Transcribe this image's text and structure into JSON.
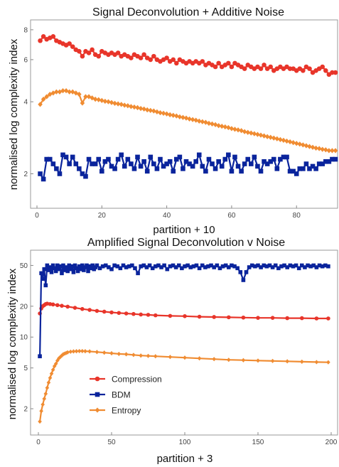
{
  "chart_data": [
    {
      "type": "line",
      "title": "Signal Deconvolution + Additive Noise",
      "xlabel": "partition + 10",
      "ylabel": "normalised log complexity index",
      "yscale": "log",
      "xlim": [
        0,
        92
      ],
      "ylim": [
        1.75,
        8.5
      ],
      "xticks": [
        "0",
        "20",
        "40",
        "60",
        "80"
      ],
      "yticks": [
        "2",
        "4",
        "6",
        "8"
      ],
      "grid": false,
      "series": [
        {
          "name": "Compression",
          "color": "#e8352a",
          "marker": "circle",
          "values": [
            7.2,
            7.5,
            7.3,
            7.4,
            7.5,
            7.2,
            7.1,
            7.0,
            6.9,
            7.0,
            6.8,
            6.6,
            6.5,
            6.2,
            6.5,
            6.4,
            6.6,
            6.3,
            6.2,
            6.5,
            6.4,
            6.3,
            6.4,
            6.3,
            6.4,
            6.2,
            6.3,
            6.2,
            6.1,
            6.3,
            6.2,
            6.1,
            6.3,
            6.1,
            6.0,
            6.2,
            6.0,
            5.9,
            6.0,
            6.1,
            5.9,
            6.0,
            5.8,
            6.0,
            5.9,
            5.8,
            5.9,
            5.8,
            5.9,
            5.8,
            5.9,
            5.7,
            5.8,
            5.7,
            5.6,
            5.8,
            5.6,
            5.7,
            5.8,
            5.6,
            5.8,
            5.7,
            5.6,
            5.5,
            5.7,
            5.6,
            5.5,
            5.6,
            5.5,
            5.7,
            5.5,
            5.6,
            5.4,
            5.5,
            5.6,
            5.5,
            5.6,
            5.5,
            5.5,
            5.4,
            5.5,
            5.4,
            5.6,
            5.5,
            5.3,
            5.4,
            5.5,
            5.6,
            5.4,
            5.2,
            5.3,
            5.3
          ]
        },
        {
          "name": "BDM",
          "color": "#0a249c",
          "marker": "square",
          "values": [
            2.0,
            1.9,
            2.3,
            2.3,
            2.2,
            2.1,
            2.0,
            2.4,
            2.35,
            2.2,
            2.35,
            2.2,
            2.1,
            2.0,
            1.95,
            2.3,
            2.2,
            2.2,
            2.3,
            2.05,
            2.25,
            2.3,
            2.15,
            2.1,
            2.3,
            2.4,
            2.15,
            2.3,
            2.2,
            2.1,
            2.35,
            2.15,
            2.25,
            2.05,
            2.35,
            2.2,
            2.1,
            2.3,
            2.15,
            2.2,
            2.25,
            2.05,
            2.3,
            2.35,
            2.1,
            2.25,
            2.2,
            2.15,
            2.25,
            2.4,
            2.15,
            2.05,
            2.3,
            2.2,
            2.1,
            2.25,
            2.15,
            2.3,
            2.4,
            2.05,
            2.35,
            2.15,
            2.05,
            2.2,
            2.3,
            2.2,
            2.35,
            2.15,
            2.05,
            2.25,
            2.2,
            2.25,
            2.3,
            2.1,
            2.3,
            2.35,
            2.35,
            2.05,
            2.05,
            2.0,
            2.1,
            2.1,
            2.2,
            2.1,
            2.15,
            2.1,
            2.2,
            2.2,
            2.25,
            2.25,
            2.3,
            2.3
          ]
        },
        {
          "name": "Entropy",
          "color": "#f08c32",
          "marker": "diamond",
          "values": [
            3.9,
            4.1,
            4.2,
            4.3,
            4.35,
            4.4,
            4.4,
            4.45,
            4.45,
            4.4,
            4.4,
            4.35,
            4.3,
            3.95,
            4.2,
            4.2,
            4.15,
            4.1,
            4.08,
            4.05,
            4.02,
            4.0,
            3.97,
            3.94,
            3.92,
            3.9,
            3.87,
            3.85,
            3.82,
            3.8,
            3.78,
            3.75,
            3.73,
            3.7,
            3.68,
            3.66,
            3.63,
            3.6,
            3.58,
            3.56,
            3.53,
            3.51,
            3.49,
            3.46,
            3.44,
            3.42,
            3.39,
            3.37,
            3.35,
            3.32,
            3.3,
            3.28,
            3.25,
            3.23,
            3.21,
            3.18,
            3.16,
            3.14,
            3.12,
            3.09,
            3.07,
            3.05,
            3.03,
            3.0,
            2.98,
            2.96,
            2.94,
            2.92,
            2.9,
            2.88,
            2.86,
            2.84,
            2.82,
            2.8,
            2.78,
            2.76,
            2.74,
            2.72,
            2.7,
            2.68,
            2.66,
            2.64,
            2.62,
            2.6,
            2.58,
            2.56,
            2.55,
            2.53,
            2.52,
            2.5,
            2.5,
            2.5
          ]
        }
      ]
    },
    {
      "type": "line",
      "title": "Amplified Signal Deconvolution v Noise",
      "xlabel": "partition + 3",
      "ylabel": "normalised log complexity index",
      "yscale": "log",
      "xlim": [
        0,
        200
      ],
      "ylim": [
        1.3,
        65
      ],
      "xticks": [
        "0",
        "50",
        "100",
        "150",
        "200"
      ],
      "yticks": [
        "2",
        "5",
        "10",
        "20",
        "50"
      ],
      "grid": false,
      "legend": {
        "placement": "lower-center",
        "entries": [
          "Compression",
          "BDM",
          "Entropy"
        ]
      },
      "series": [
        {
          "name": "Compression",
          "color": "#e8352a",
          "marker": "circle",
          "x": [
            1,
            2,
            3,
            4,
            5,
            6,
            8,
            10,
            13,
            16,
            20,
            25,
            30,
            35,
            40,
            45,
            50,
            55,
            60,
            65,
            70,
            75,
            80,
            90,
            100,
            110,
            120,
            130,
            140,
            150,
            160,
            170,
            180,
            190,
            198
          ],
          "values": [
            17,
            19,
            20,
            20.5,
            21,
            21.2,
            21,
            20.8,
            20.5,
            20.2,
            19.8,
            19.3,
            18.8,
            18.4,
            18,
            17.7,
            17.4,
            17.2,
            17,
            16.8,
            16.6,
            16.5,
            16.3,
            16.1,
            16,
            15.8,
            15.7,
            15.6,
            15.5,
            15.4,
            15.4,
            15.3,
            15.3,
            15.2,
            15.2
          ]
        },
        {
          "name": "BDM",
          "color": "#0a249c",
          "marker": "square",
          "x": [
            1,
            2,
            3,
            4,
            5,
            6,
            7,
            8,
            9,
            10,
            11,
            12,
            13,
            14,
            15,
            16,
            17,
            18,
            19,
            20,
            21,
            22,
            23,
            24,
            25,
            26,
            27,
            28,
            29,
            30,
            31,
            32,
            33,
            34,
            35,
            36,
            37,
            38,
            39,
            40,
            42,
            44,
            46,
            48,
            50,
            52,
            54,
            56,
            58,
            60,
            62,
            64,
            66,
            68,
            70,
            72,
            74,
            76,
            78,
            80,
            82,
            84,
            86,
            88,
            90,
            92,
            94,
            96,
            98,
            100,
            102,
            104,
            106,
            108,
            110,
            112,
            114,
            116,
            118,
            120,
            122,
            124,
            126,
            128,
            130,
            132,
            134,
            136,
            138,
            140,
            142,
            144,
            146,
            148,
            150,
            152,
            154,
            156,
            158,
            160,
            162,
            164,
            166,
            168,
            170,
            172,
            174,
            176,
            178,
            180,
            182,
            184,
            186,
            188,
            190,
            192,
            194,
            196,
            198
          ],
          "values": [
            6.5,
            42,
            37,
            46,
            32,
            50,
            45,
            48,
            43,
            50,
            47,
            44,
            50,
            46,
            49,
            42,
            50,
            45,
            48,
            44,
            50,
            46,
            49,
            43,
            50,
            47,
            44,
            49,
            46,
            50,
            45,
            48,
            50,
            44,
            49,
            47,
            50,
            46,
            48,
            50,
            47,
            49,
            50,
            48,
            46,
            50,
            49,
            47,
            50,
            48,
            49,
            50,
            47,
            42,
            49,
            50,
            48,
            50,
            47,
            49,
            50,
            48,
            50,
            46,
            49,
            50,
            48,
            50,
            47,
            49,
            50,
            48,
            49,
            50,
            47,
            50,
            48,
            49,
            50,
            48,
            50,
            47,
            49,
            50,
            48,
            50,
            49,
            47,
            43,
            36,
            43,
            48,
            50,
            49,
            50,
            48,
            50,
            49,
            50,
            48,
            50,
            47,
            49,
            50,
            48,
            50,
            49,
            50,
            47,
            50,
            48,
            50,
            49,
            50,
            48,
            50,
            49,
            50,
            49
          ]
        },
        {
          "name": "Entropy",
          "color": "#f08c32",
          "marker": "diamond",
          "x": [
            1,
            2,
            3,
            4,
            5,
            6,
            7,
            8,
            9,
            10,
            11,
            12,
            13,
            14,
            15,
            16,
            17,
            18,
            19,
            20,
            22,
            24,
            26,
            28,
            30,
            32,
            35,
            40,
            45,
            50,
            55,
            60,
            65,
            70,
            75,
            80,
            90,
            100,
            110,
            120,
            130,
            140,
            150,
            160,
            170,
            180,
            190,
            198
          ],
          "values": [
            1.5,
            1.9,
            2.2,
            2.5,
            2.8,
            3.2,
            3.6,
            4.0,
            4.4,
            4.8,
            5.2,
            5.5,
            5.9,
            6.2,
            6.4,
            6.6,
            6.8,
            6.9,
            7.0,
            7.1,
            7.2,
            7.25,
            7.28,
            7.3,
            7.3,
            7.28,
            7.25,
            7.15,
            7.05,
            6.95,
            6.85,
            6.8,
            6.7,
            6.6,
            6.55,
            6.5,
            6.4,
            6.3,
            6.2,
            6.1,
            6.0,
            5.95,
            5.9,
            5.85,
            5.8,
            5.75,
            5.7,
            5.68
          ]
        }
      ]
    }
  ]
}
